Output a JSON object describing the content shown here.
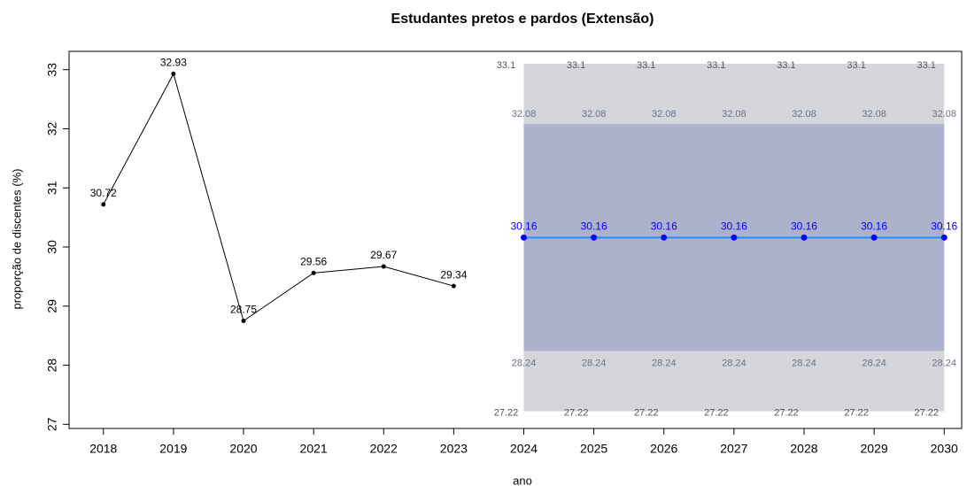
{
  "chart_data": {
    "type": "line",
    "title": "Estudantes pretos e pardos (Extensão)",
    "xlabel": "ano",
    "ylabel": "proporção de discentes (%)",
    "x": [
      2018,
      2019,
      2020,
      2021,
      2022,
      2023,
      2024,
      2025,
      2026,
      2027,
      2028,
      2029,
      2030
    ],
    "xlim": [
      2017.51,
      2030.25
    ],
    "xticks": [
      2018,
      2019,
      2020,
      2021,
      2022,
      2023,
      2024,
      2025,
      2026,
      2027,
      2028,
      2029,
      2030
    ],
    "ylim": [
      26.93,
      33.31
    ],
    "yticks": [
      27,
      28,
      29,
      30,
      31,
      32,
      33
    ],
    "series": [
      {
        "color": "#000000",
        "values": [
          30.72,
          32.93,
          28.75,
          29.56,
          29.67,
          29.34,
          null,
          null,
          null,
          null,
          null,
          null,
          null
        ]
      },
      {
        "color": "#0000ff",
        "line_color": "#1e90ff",
        "values": [
          null,
          null,
          null,
          null,
          null,
          null,
          30.16,
          30.16,
          30.16,
          30.16,
          30.16,
          30.16,
          30.16
        ]
      }
    ],
    "bands": [
      {
        "color": "#d5d5dc",
        "label_color": "#555555",
        "lower": [
          null,
          null,
          null,
          null,
          null,
          null,
          27.22,
          27.22,
          27.22,
          27.22,
          27.22,
          27.22,
          27.22
        ],
        "upper": [
          null,
          null,
          null,
          null,
          null,
          null,
          33.1,
          33.1,
          33.1,
          33.1,
          33.1,
          33.1,
          33.1
        ]
      },
      {
        "color": "#adb1cb",
        "label_color": "#6b7088",
        "lower": [
          null,
          null,
          null,
          null,
          null,
          null,
          28.24,
          28.24,
          28.24,
          28.24,
          28.24,
          28.24,
          28.24
        ],
        "upper": [
          null,
          null,
          null,
          null,
          null,
          null,
          32.08,
          32.08,
          32.08,
          32.08,
          32.08,
          32.08,
          32.08
        ]
      }
    ]
  }
}
